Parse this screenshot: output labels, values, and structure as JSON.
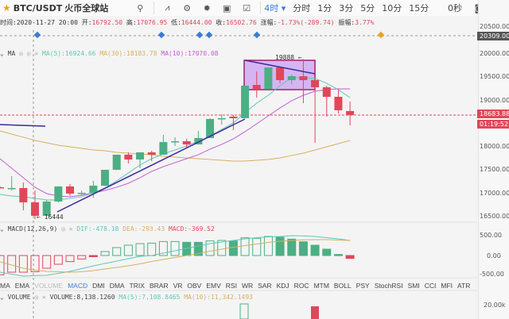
{
  "header": {
    "symbol": "BTC/USDT",
    "exchange": "火币全球站",
    "interval": "4时",
    "timeframes": [
      "分时",
      "1分",
      "3分",
      "5分",
      "10分",
      "15分"
    ],
    "countdown_label": "0秒",
    "icons": [
      "search-icon",
      "indicator-icon",
      "gear-icon",
      "theme-sun-icon",
      "template-icon",
      "drawing-icon"
    ]
  },
  "ohlc_info": {
    "time_label": "时间:",
    "time": "2020-11-27 20:00",
    "open_label": "开:",
    "open": "16792.50",
    "high_label": "高:",
    "high": "17076.95",
    "low_label": "低:",
    "low": "16444.00",
    "close_label": "收:",
    "close": "16502.76",
    "change_label": "涨幅:",
    "change": "-1.73%(-289.74)",
    "amp_label": "振幅:",
    "amp": "3.77%"
  },
  "main_indicator": {
    "name": "MA",
    "ma5": "MA(5):16924.66",
    "ma30": "MA(30):18183.78",
    "ma10": "MA(10):17070.08"
  },
  "price_axis": {
    "labels": [
      "20500.00",
      "20000.00",
      "19500.00",
      "19000.00",
      "18000.00",
      "17500.00",
      "17000.00",
      "16500.00"
    ],
    "values": [
      20500,
      20000,
      19500,
      19000,
      18000,
      17500,
      17000,
      16500
    ],
    "crosshair_price": "20309.00",
    "last_price": "18683.88",
    "countdown": "01:19:52"
  },
  "annotations": {
    "high_mark": "19888",
    "low_mark": "16444"
  },
  "colors": {
    "up": "#4caf84",
    "down": "#e0475a",
    "ma5": "#5fc9b5",
    "ma10": "#c060d0",
    "ma30": "#d8b060",
    "accent": "#3a7bd5",
    "trendline": "#3a2aa0"
  },
  "chart_data": {
    "type": "candlestick",
    "candles": [
      [
        17130,
        17150,
        17100,
        17112
      ],
      [
        17100,
        17368,
        17060,
        17112
      ],
      [
        17112,
        17231,
        16633,
        16804
      ],
      [
        16804,
        17060,
        16444,
        16514
      ],
      [
        16514,
        16855,
        16500,
        16821
      ],
      [
        16821,
        17146,
        16800,
        17146
      ],
      [
        17146,
        17197,
        16941,
        16992
      ],
      [
        16992,
        17060,
        16941,
        17009
      ],
      [
        17009,
        17266,
        16900,
        17163
      ],
      [
        17163,
        17505,
        17150,
        17505
      ],
      [
        17505,
        17830,
        17500,
        17830
      ],
      [
        17830,
        17881,
        17642,
        17727
      ],
      [
        17727,
        17881,
        17539,
        17881
      ],
      [
        17881,
        17915,
        17693,
        17830
      ],
      [
        17830,
        18257,
        17830,
        18103
      ],
      [
        18103,
        18206,
        18018,
        18120
      ],
      [
        18120,
        18172,
        17983,
        18052
      ],
      [
        18052,
        18342,
        18052,
        18189
      ],
      [
        18189,
        18616,
        18189,
        18599
      ],
      [
        18599,
        18701,
        18479,
        18616
      ],
      [
        18650,
        18684,
        18359,
        18616
      ],
      [
        18616,
        19316,
        18616,
        19316
      ],
      [
        19333,
        19624,
        19060,
        19248
      ],
      [
        19248,
        19709,
        19248,
        19709
      ],
      [
        19709,
        19709,
        19368,
        19436
      ],
      [
        19436,
        19555,
        19351,
        19521
      ],
      [
        19521,
        19888,
        18940,
        19436
      ],
      [
        19436,
        19453,
        18086,
        19282
      ],
      [
        19282,
        19316,
        18650,
        19077
      ],
      [
        19077,
        19248,
        18718,
        18787
      ],
      [
        18770,
        18975,
        18462,
        18684
      ]
    ],
    "ma5": [
      16975,
      16941,
      16924,
      16890,
      16855,
      16855,
      16890,
      16924,
      17009,
      17112,
      17266,
      17437,
      17607,
      17744,
      17847,
      17932,
      18018,
      18120,
      18223,
      18376,
      18513,
      18735,
      18940,
      19111,
      19316,
      19487,
      19487,
      19470,
      19368,
      19231,
      19060
    ],
    "ma10": [
      17744,
      17539,
      17334,
      17129,
      16992,
      16941,
      16924,
      16958,
      17009,
      17060,
      17129,
      17214,
      17334,
      17471,
      17573,
      17659,
      17744,
      17830,
      17949,
      18052,
      18172,
      18325,
      18496,
      18667,
      18838,
      18992,
      19111,
      19197,
      19231,
      19248,
      19248
    ],
    "ma30": [
      18342,
      18274,
      18206,
      18137,
      18086,
      18035,
      18000,
      17966,
      17932,
      17915,
      17881,
      17864,
      17847,
      17830,
      17796,
      17778,
      17761,
      17744,
      17727,
      17710,
      17693,
      17693,
      17710,
      17727,
      17761,
      17813,
      17864,
      17932,
      18000,
      18069,
      18137
    ],
    "macd_hist": [
      -487,
      -420,
      -420,
      -407,
      -320,
      -220,
      -153,
      -87,
      -27,
      100,
      200,
      260,
      300,
      313,
      353,
      353,
      333,
      333,
      367,
      380,
      367,
      447,
      433,
      480,
      460,
      413,
      347,
      260,
      160,
      27,
      -73
    ],
    "macd_hollow": [
      1,
      1,
      1,
      1,
      1,
      1,
      1,
      1,
      0,
      1,
      1,
      1,
      1,
      1,
      1,
      1,
      0,
      0,
      1,
      1,
      0,
      1,
      1,
      1,
      0,
      0,
      0,
      0,
      0,
      0,
      0
    ],
    "dif": [
      -420,
      -470,
      -520,
      -505,
      -500,
      -450,
      -400,
      -330,
      -260,
      -200,
      -140,
      -80,
      -20,
      0,
      60,
      120,
      180,
      240,
      300,
      340,
      380,
      420,
      450,
      470,
      480,
      500,
      495,
      480,
      450,
      420,
      380
    ],
    "dea": [
      -160,
      -240,
      -320,
      -370,
      -400,
      -410,
      -420,
      -410,
      -380,
      -340,
      -300,
      -260,
      -210,
      -150,
      -100,
      -50,
      0,
      50,
      110,
      160,
      210,
      250,
      290,
      330,
      360,
      380,
      395,
      400,
      400,
      390,
      380
    ]
  },
  "macd": {
    "name": "MACD(12,26,9)",
    "dif": "DIF:-478.18",
    "dea": "DEA:-293.43",
    "macd": "MACD:-369.52",
    "axis": [
      "500.00",
      "0.00",
      "-500.00"
    ]
  },
  "indicator_tabs": [
    "MA",
    "EMA",
    "VOLUME",
    "MACD",
    "DMI",
    "DMA",
    "TRIX",
    "BRAR",
    "VR",
    "OBV",
    "EMV",
    "RSI",
    "WR",
    "SAR",
    "KDJ",
    "ROC",
    "MTM",
    "BOLL",
    "PSY",
    "StochRSI",
    "SMI",
    "CCI",
    "MFI",
    "ATR"
  ],
  "volume": {
    "name": "VOLUME",
    "volume": "VOLUME:8,138.1260",
    "ma5": "MA(5):7,108.8465",
    "ma10": "MA(10):11,342.1493",
    "axis": [
      "20.00k"
    ]
  }
}
